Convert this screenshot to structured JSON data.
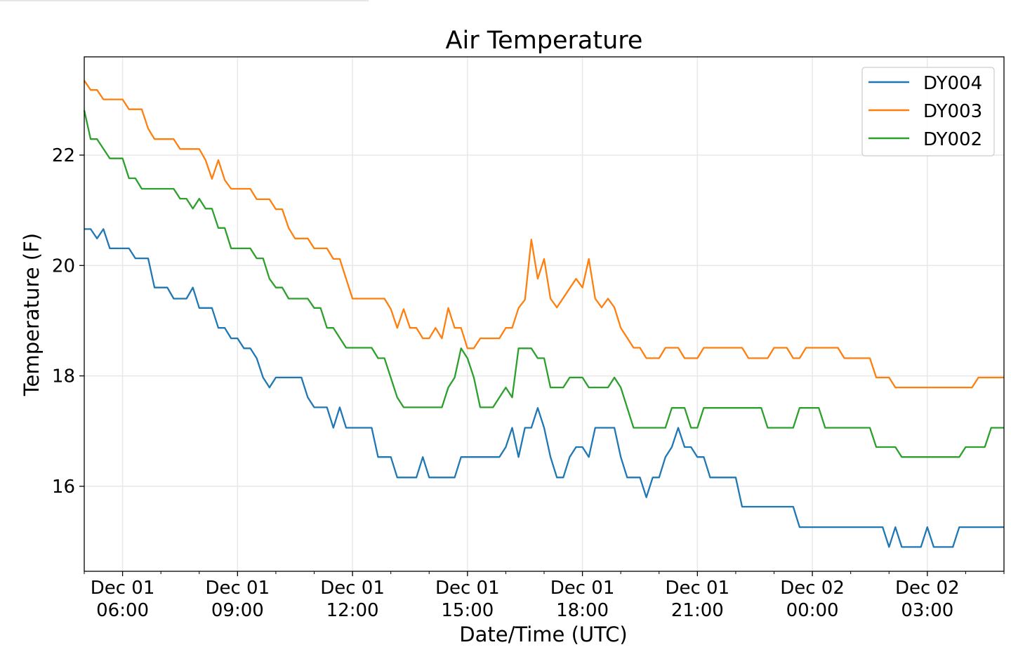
{
  "chart_data": {
    "type": "line",
    "title": "Air Temperature",
    "xlabel": "Date/Time (UTC)",
    "ylabel": "Temperature (F)",
    "x_unit": "minutes since Dec 01 00:00 UTC",
    "xlim": [
      300,
      1740
    ],
    "ylim": [
      14.46,
      23.78
    ],
    "grid": true,
    "legend_position": "top-right",
    "y_ticks": [
      16,
      18,
      20,
      22
    ],
    "x_ticks": [
      {
        "value": 360,
        "line1": "Dec 01",
        "line2": "06:00"
      },
      {
        "value": 540,
        "line1": "Dec 01",
        "line2": "09:00"
      },
      {
        "value": 720,
        "line1": "Dec 01",
        "line2": "12:00"
      },
      {
        "value": 900,
        "line1": "Dec 01",
        "line2": "15:00"
      },
      {
        "value": 1080,
        "line1": "Dec 01",
        "line2": "18:00"
      },
      {
        "value": 1260,
        "line1": "Dec 01",
        "line2": "21:00"
      },
      {
        "value": 1440,
        "line1": "Dec 02",
        "line2": "00:00"
      },
      {
        "value": 1620,
        "line1": "Dec 02",
        "line2": "03:00"
      }
    ],
    "series": [
      {
        "name": "DY004",
        "color": "#1f77b4",
        "points": [
          [
            300,
            20.66
          ],
          [
            310,
            20.66
          ],
          [
            320,
            20.49
          ],
          [
            330,
            20.66
          ],
          [
            340,
            20.31
          ],
          [
            370,
            20.31
          ],
          [
            380,
            20.13
          ],
          [
            400,
            20.13
          ],
          [
            410,
            19.6
          ],
          [
            430,
            19.6
          ],
          [
            440,
            19.4
          ],
          [
            460,
            19.4
          ],
          [
            470,
            19.6
          ],
          [
            480,
            19.23
          ],
          [
            500,
            19.23
          ],
          [
            510,
            18.87
          ],
          [
            520,
            18.87
          ],
          [
            530,
            18.68
          ],
          [
            540,
            18.68
          ],
          [
            550,
            18.5
          ],
          [
            560,
            18.5
          ],
          [
            570,
            18.32
          ],
          [
            580,
            17.97
          ],
          [
            590,
            17.79
          ],
          [
            600,
            17.97
          ],
          [
            640,
            17.97
          ],
          [
            650,
            17.61
          ],
          [
            660,
            17.43
          ],
          [
            680,
            17.43
          ],
          [
            690,
            17.06
          ],
          [
            700,
            17.43
          ],
          [
            710,
            17.06
          ],
          [
            750,
            17.06
          ],
          [
            760,
            16.53
          ],
          [
            780,
            16.53
          ],
          [
            790,
            16.16
          ],
          [
            820,
            16.16
          ],
          [
            830,
            16.53
          ],
          [
            840,
            16.16
          ],
          [
            880,
            16.16
          ],
          [
            890,
            16.53
          ],
          [
            950,
            16.53
          ],
          [
            960,
            16.71
          ],
          [
            970,
            17.06
          ],
          [
            980,
            16.53
          ],
          [
            990,
            17.06
          ],
          [
            1000,
            17.06
          ],
          [
            1010,
            17.42
          ],
          [
            1020,
            17.06
          ],
          [
            1030,
            16.53
          ],
          [
            1040,
            16.16
          ],
          [
            1050,
            16.16
          ],
          [
            1060,
            16.53
          ],
          [
            1070,
            16.71
          ],
          [
            1080,
            16.71
          ],
          [
            1090,
            16.53
          ],
          [
            1100,
            17.06
          ],
          [
            1130,
            17.06
          ],
          [
            1140,
            16.53
          ],
          [
            1150,
            16.16
          ],
          [
            1170,
            16.16
          ],
          [
            1180,
            15.8
          ],
          [
            1190,
            16.16
          ],
          [
            1200,
            16.16
          ],
          [
            1210,
            16.53
          ],
          [
            1220,
            16.71
          ],
          [
            1230,
            17.06
          ],
          [
            1240,
            16.71
          ],
          [
            1250,
            16.71
          ],
          [
            1260,
            16.53
          ],
          [
            1270,
            16.53
          ],
          [
            1280,
            16.16
          ],
          [
            1320,
            16.16
          ],
          [
            1330,
            15.63
          ],
          [
            1410,
            15.63
          ],
          [
            1420,
            15.26
          ],
          [
            1550,
            15.26
          ],
          [
            1560,
            14.9
          ],
          [
            1570,
            15.26
          ],
          [
            1580,
            14.9
          ],
          [
            1610,
            14.9
          ],
          [
            1620,
            15.26
          ],
          [
            1630,
            14.9
          ],
          [
            1660,
            14.9
          ],
          [
            1670,
            15.26
          ],
          [
            1740,
            15.26
          ]
        ]
      },
      {
        "name": "DY003",
        "color": "#ff7f0e",
        "points": [
          [
            300,
            23.35
          ],
          [
            310,
            23.18
          ],
          [
            320,
            23.18
          ],
          [
            330,
            23.01
          ],
          [
            360,
            23.01
          ],
          [
            370,
            22.83
          ],
          [
            390,
            22.83
          ],
          [
            400,
            22.48
          ],
          [
            410,
            22.29
          ],
          [
            440,
            22.29
          ],
          [
            450,
            22.11
          ],
          [
            480,
            22.11
          ],
          [
            490,
            21.91
          ],
          [
            500,
            21.57
          ],
          [
            510,
            21.91
          ],
          [
            520,
            21.55
          ],
          [
            530,
            21.39
          ],
          [
            560,
            21.39
          ],
          [
            570,
            21.2
          ],
          [
            590,
            21.2
          ],
          [
            600,
            21.02
          ],
          [
            610,
            21.02
          ],
          [
            620,
            20.68
          ],
          [
            630,
            20.49
          ],
          [
            650,
            20.49
          ],
          [
            660,
            20.31
          ],
          [
            680,
            20.31
          ],
          [
            690,
            20.12
          ],
          [
            700,
            20.12
          ],
          [
            710,
            19.76
          ],
          [
            720,
            19.4
          ],
          [
            770,
            19.4
          ],
          [
            780,
            19.21
          ],
          [
            790,
            18.87
          ],
          [
            800,
            19.21
          ],
          [
            810,
            18.87
          ],
          [
            820,
            18.87
          ],
          [
            830,
            18.68
          ],
          [
            840,
            18.68
          ],
          [
            850,
            18.87
          ],
          [
            860,
            18.68
          ],
          [
            870,
            19.23
          ],
          [
            880,
            18.87
          ],
          [
            890,
            18.87
          ],
          [
            900,
            18.5
          ],
          [
            910,
            18.5
          ],
          [
            920,
            18.68
          ],
          [
            950,
            18.68
          ],
          [
            960,
            18.87
          ],
          [
            970,
            18.87
          ],
          [
            980,
            19.23
          ],
          [
            990,
            19.38
          ],
          [
            1000,
            20.47
          ],
          [
            1010,
            19.76
          ],
          [
            1020,
            20.12
          ],
          [
            1030,
            19.4
          ],
          [
            1040,
            19.24
          ],
          [
            1070,
            19.76
          ],
          [
            1080,
            19.6
          ],
          [
            1090,
            20.12
          ],
          [
            1100,
            19.4
          ],
          [
            1110,
            19.24
          ],
          [
            1120,
            19.4
          ],
          [
            1130,
            19.24
          ],
          [
            1140,
            18.87
          ],
          [
            1160,
            18.51
          ],
          [
            1170,
            18.51
          ],
          [
            1180,
            18.32
          ],
          [
            1200,
            18.32
          ],
          [
            1210,
            18.51
          ],
          [
            1230,
            18.51
          ],
          [
            1240,
            18.32
          ],
          [
            1260,
            18.32
          ],
          [
            1270,
            18.51
          ],
          [
            1330,
            18.51
          ],
          [
            1340,
            18.32
          ],
          [
            1370,
            18.32
          ],
          [
            1380,
            18.51
          ],
          [
            1400,
            18.51
          ],
          [
            1410,
            18.32
          ],
          [
            1420,
            18.32
          ],
          [
            1430,
            18.51
          ],
          [
            1480,
            18.51
          ],
          [
            1490,
            18.32
          ],
          [
            1530,
            18.32
          ],
          [
            1540,
            17.97
          ],
          [
            1560,
            17.97
          ],
          [
            1570,
            17.79
          ],
          [
            1690,
            17.79
          ],
          [
            1700,
            17.97
          ],
          [
            1740,
            17.97
          ]
        ]
      },
      {
        "name": "DY002",
        "color": "#2ca02c",
        "points": [
          [
            300,
            22.81
          ],
          [
            310,
            22.29
          ],
          [
            320,
            22.29
          ],
          [
            340,
            21.94
          ],
          [
            360,
            21.94
          ],
          [
            370,
            21.58
          ],
          [
            380,
            21.58
          ],
          [
            390,
            21.39
          ],
          [
            440,
            21.39
          ],
          [
            450,
            21.21
          ],
          [
            460,
            21.21
          ],
          [
            470,
            21.03
          ],
          [
            480,
            21.21
          ],
          [
            490,
            21.03
          ],
          [
            500,
            21.03
          ],
          [
            510,
            20.68
          ],
          [
            520,
            20.68
          ],
          [
            530,
            20.31
          ],
          [
            560,
            20.31
          ],
          [
            570,
            20.13
          ],
          [
            580,
            20.13
          ],
          [
            590,
            19.76
          ],
          [
            600,
            19.6
          ],
          [
            610,
            19.6
          ],
          [
            620,
            19.4
          ],
          [
            650,
            19.4
          ],
          [
            660,
            19.23
          ],
          [
            670,
            19.23
          ],
          [
            680,
            18.87
          ],
          [
            690,
            18.87
          ],
          [
            710,
            18.51
          ],
          [
            750,
            18.51
          ],
          [
            760,
            18.32
          ],
          [
            770,
            18.32
          ],
          [
            790,
            17.61
          ],
          [
            800,
            17.43
          ],
          [
            860,
            17.43
          ],
          [
            870,
            17.79
          ],
          [
            880,
            17.97
          ],
          [
            890,
            18.5
          ],
          [
            900,
            18.32
          ],
          [
            910,
            17.97
          ],
          [
            920,
            17.43
          ],
          [
            940,
            17.43
          ],
          [
            960,
            17.79
          ],
          [
            970,
            17.61
          ],
          [
            980,
            18.5
          ],
          [
            1000,
            18.5
          ],
          [
            1010,
            18.32
          ],
          [
            1020,
            18.32
          ],
          [
            1030,
            17.79
          ],
          [
            1050,
            17.79
          ],
          [
            1060,
            17.97
          ],
          [
            1080,
            17.97
          ],
          [
            1090,
            17.79
          ],
          [
            1120,
            17.79
          ],
          [
            1130,
            17.97
          ],
          [
            1140,
            17.79
          ],
          [
            1160,
            17.06
          ],
          [
            1210,
            17.06
          ],
          [
            1220,
            17.42
          ],
          [
            1240,
            17.42
          ],
          [
            1250,
            17.06
          ],
          [
            1260,
            17.06
          ],
          [
            1270,
            17.42
          ],
          [
            1360,
            17.42
          ],
          [
            1370,
            17.06
          ],
          [
            1410,
            17.06
          ],
          [
            1420,
            17.42
          ],
          [
            1450,
            17.42
          ],
          [
            1460,
            17.06
          ],
          [
            1530,
            17.06
          ],
          [
            1540,
            16.71
          ],
          [
            1570,
            16.71
          ],
          [
            1580,
            16.53
          ],
          [
            1670,
            16.53
          ],
          [
            1680,
            16.71
          ],
          [
            1710,
            16.71
          ],
          [
            1720,
            17.06
          ],
          [
            1740,
            17.06
          ]
        ]
      }
    ]
  }
}
